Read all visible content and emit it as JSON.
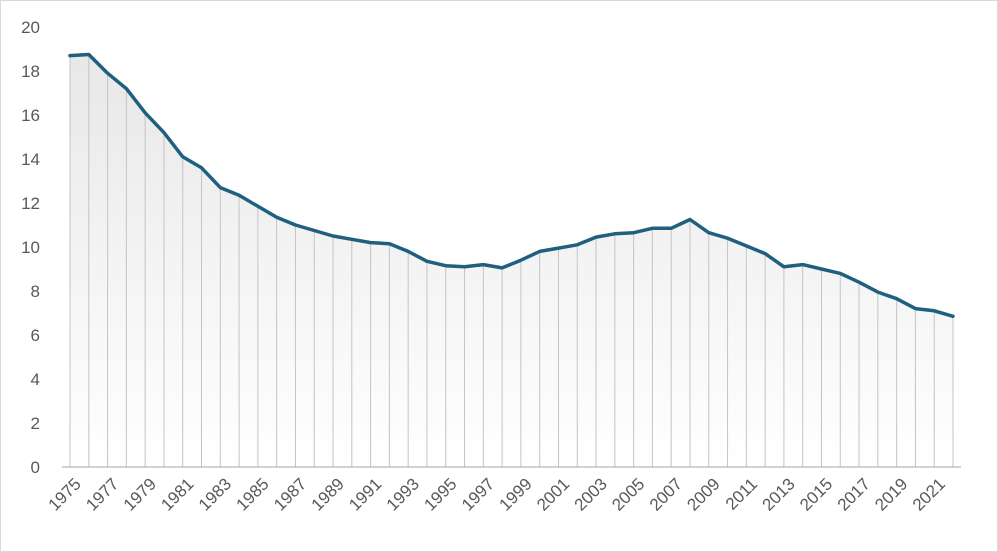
{
  "chart_data": {
    "type": "area",
    "title": "",
    "xlabel": "",
    "ylabel": "",
    "ylim": [
      0,
      20
    ],
    "y_ticks": [
      "0",
      "2",
      "4",
      "6",
      "8",
      "10",
      "12",
      "14",
      "16",
      "18",
      "20"
    ],
    "x_tick_labels": [
      "1975",
      "1977",
      "1979",
      "1981",
      "1983",
      "1985",
      "1987",
      "1989",
      "1991",
      "1993",
      "1995",
      "1997",
      "1999",
      "2001",
      "2003",
      "2005",
      "2007",
      "2009",
      "2011",
      "2013",
      "2015",
      "2017",
      "2019",
      "2021"
    ],
    "grid": false,
    "legend": "none",
    "x": [
      1975,
      1976,
      1977,
      1978,
      1979,
      1980,
      1981,
      1982,
      1983,
      1984,
      1985,
      1986,
      1987,
      1988,
      1989,
      1990,
      1991,
      1992,
      1993,
      1994,
      1995,
      1996,
      1997,
      1998,
      1999,
      2000,
      2001,
      2002,
      2003,
      2004,
      2005,
      2006,
      2007,
      2008,
      2009,
      2010,
      2011,
      2012,
      2013,
      2014,
      2015,
      2016,
      2017,
      2018,
      2019,
      2020,
      2021,
      2022
    ],
    "series": [
      {
        "values": [
          18.7,
          18.75,
          17.9,
          17.2,
          16.1,
          15.2,
          14.1,
          13.6,
          12.7,
          12.35,
          11.85,
          11.35,
          11.0,
          10.75,
          10.5,
          10.35,
          10.2,
          10.15,
          9.8,
          9.35,
          9.15,
          9.1,
          9.2,
          9.05,
          9.4,
          9.8,
          9.95,
          10.1,
          10.45,
          10.6,
          10.65,
          10.85,
          10.85,
          11.25,
          10.65,
          10.4,
          10.05,
          9.7,
          9.1,
          9.2,
          9.0,
          8.8,
          8.4,
          7.95,
          7.65,
          7.2,
          7.1,
          6.85
        ]
      }
    ],
    "colors": {
      "line": "#1f5f7f",
      "fill_top": "#e8e8e8",
      "fill_bottom": "#ffffff",
      "drop_lines": "#c4c4c4",
      "axis": "#a6a6a6",
      "text": "#595959"
    }
  }
}
